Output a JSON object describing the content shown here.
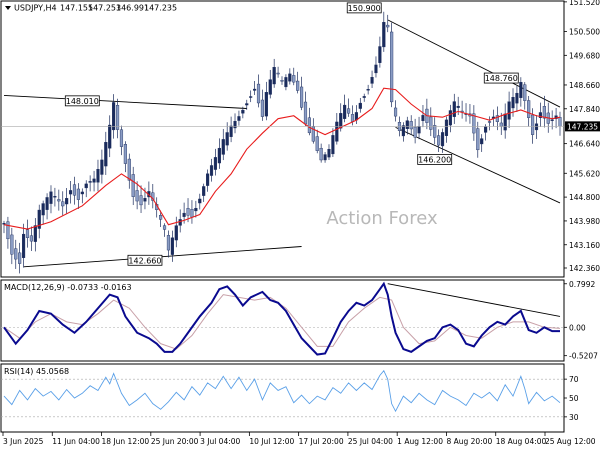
{
  "chart_data": [
    {
      "panel": "price",
      "type": "candlestick",
      "title": "USDJPY,H4",
      "ohlc_header": [
        "147.155",
        "147.253",
        "146.991",
        "147.235"
      ],
      "watermark": "Action Forex",
      "ylim": [
        142.05,
        151.55
      ],
      "y_ticks": [
        "151.520",
        "150.500",
        "149.680",
        "148.660",
        "147.840",
        "147.235",
        "146.640",
        "145.620",
        "144.800",
        "143.980",
        "143.160",
        "142.360"
      ],
      "current_price": "147.235",
      "x_ticks": [
        "3 Jun 2025",
        "11 Jun 04:00",
        "18 Jun 12:00",
        "25 Jun 20:00",
        "3 Jul 04:00",
        "10 Jul 12:00",
        "17 Jul 20:00",
        "25 Jul 04:00",
        "1 Aug 12:00",
        "8 Aug 20:00",
        "18 Aug 04:00",
        "25 Aug 12:00"
      ],
      "close_path": [
        [
          0,
          143.9
        ],
        [
          2,
          142.9
        ],
        [
          4,
          142.6
        ],
        [
          5,
          143.6
        ],
        [
          7,
          143.3
        ],
        [
          9,
          144.3
        ],
        [
          12,
          144.9
        ],
        [
          15,
          144.5
        ],
        [
          17,
          145.1
        ],
        [
          19,
          144.8
        ],
        [
          21,
          145.3
        ],
        [
          23,
          145.4
        ],
        [
          25,
          146.0
        ],
        [
          27,
          147.2
        ],
        [
          28,
          148.0
        ],
        [
          29,
          147.1
        ],
        [
          31,
          146.0
        ],
        [
          33,
          144.9
        ],
        [
          35,
          144.6
        ],
        [
          37,
          145.0
        ],
        [
          39,
          144.3
        ],
        [
          41,
          143.6
        ],
        [
          42,
          142.9
        ],
        [
          44,
          143.8
        ],
        [
          46,
          144.3
        ],
        [
          48,
          144.2
        ],
        [
          50,
          144.8
        ],
        [
          52,
          145.6
        ],
        [
          54,
          146.1
        ],
        [
          56,
          146.7
        ],
        [
          58,
          147.2
        ],
        [
          60,
          147.6
        ],
        [
          62,
          148.1
        ],
        [
          64,
          148.6
        ],
        [
          66,
          147.6
        ],
        [
          67,
          148.4
        ],
        [
          69,
          149.2
        ],
        [
          71,
          148.7
        ],
        [
          73,
          149.0
        ],
        [
          75,
          148.5
        ],
        [
          77,
          147.4
        ],
        [
          79,
          146.8
        ],
        [
          81,
          146.1
        ],
        [
          83,
          146.4
        ],
        [
          85,
          147.3
        ],
        [
          87,
          147.9
        ],
        [
          89,
          147.4
        ],
        [
          91,
          148.1
        ],
        [
          93,
          148.6
        ],
        [
          95,
          149.4
        ],
        [
          96,
          150.0
        ],
        [
          97,
          150.8
        ],
        [
          98,
          150.6
        ],
        [
          99,
          148.0
        ],
        [
          101,
          147.0
        ],
        [
          103,
          147.4
        ],
        [
          105,
          146.9
        ],
        [
          107,
          147.7
        ],
        [
          109,
          147.2
        ],
        [
          111,
          146.6
        ],
        [
          113,
          147.4
        ],
        [
          115,
          148.0
        ],
        [
          117,
          147.7
        ],
        [
          119,
          147.6
        ],
        [
          121,
          146.5
        ],
        [
          123,
          147.3
        ],
        [
          125,
          147.6
        ],
        [
          127,
          147.2
        ],
        [
          129,
          148.0
        ],
        [
          131,
          148.3
        ],
        [
          132,
          148.7
        ],
        [
          133,
          148.1
        ],
        [
          135,
          147.0
        ],
        [
          137,
          147.8
        ],
        [
          139,
          147.4
        ],
        [
          141,
          147.6
        ],
        [
          142,
          147.2
        ]
      ],
      "moving_average_path": [
        [
          0,
          143.85
        ],
        [
          6,
          143.7
        ],
        [
          12,
          143.95
        ],
        [
          20,
          144.5
        ],
        [
          26,
          145.2
        ],
        [
          30,
          145.6
        ],
        [
          34,
          145.25
        ],
        [
          38,
          144.75
        ],
        [
          42,
          143.85
        ],
        [
          46,
          144.0
        ],
        [
          50,
          144.2
        ],
        [
          54,
          145.0
        ],
        [
          58,
          145.6
        ],
        [
          62,
          146.45
        ],
        [
          66,
          147.0
        ],
        [
          70,
          147.5
        ],
        [
          74,
          147.6
        ],
        [
          78,
          147.2
        ],
        [
          82,
          146.95
        ],
        [
          86,
          147.2
        ],
        [
          90,
          147.45
        ],
        [
          94,
          147.85
        ],
        [
          97,
          148.55
        ],
        [
          100,
          148.5
        ],
        [
          104,
          148.0
        ],
        [
          108,
          147.6
        ],
        [
          112,
          147.55
        ],
        [
          116,
          147.75
        ],
        [
          120,
          147.6
        ],
        [
          124,
          147.45
        ],
        [
          128,
          147.65
        ],
        [
          132,
          147.8
        ],
        [
          136,
          147.6
        ],
        [
          140,
          147.5
        ],
        [
          142,
          147.55
        ]
      ],
      "annotations": [
        {
          "label": "150.900",
          "value": 150.9
        },
        {
          "label": "148.010",
          "value": 148.01
        },
        {
          "label": "148.760",
          "value": 148.76
        },
        {
          "label": "146.200",
          "value": 146.2
        },
        {
          "label": "142.660",
          "value": 142.66
        }
      ],
      "trendlines": [
        {
          "from": [
            0,
            148.3
          ],
          "to": [
            62,
            147.85
          ]
        },
        {
          "from": [
            5,
            142.4
          ],
          "to": [
            76,
            143.1
          ]
        },
        {
          "from": [
            98,
            150.9
          ],
          "to": [
            142,
            147.9
          ]
        },
        {
          "from": [
            100,
            147.2
          ],
          "to": [
            142,
            144.6
          ]
        }
      ]
    },
    {
      "panel": "macd",
      "type": "line",
      "title": "MACD(12,26,9) -0.0733 -0.0163",
      "ylim": [
        -0.6,
        0.85
      ],
      "y_ticks": [
        "0.7992",
        "0.00",
        "-0.5207"
      ],
      "macd_path": [
        [
          0,
          0.0
        ],
        [
          3,
          -0.3
        ],
        [
          6,
          -0.05
        ],
        [
          9,
          0.3
        ],
        [
          12,
          0.25
        ],
        [
          15,
          0.05
        ],
        [
          18,
          -0.1
        ],
        [
          21,
          0.1
        ],
        [
          24,
          0.35
        ],
        [
          27,
          0.6
        ],
        [
          29,
          0.55
        ],
        [
          31,
          0.2
        ],
        [
          34,
          -0.1
        ],
        [
          37,
          -0.2
        ],
        [
          39,
          -0.3
        ],
        [
          41,
          -0.45
        ],
        [
          43,
          -0.45
        ],
        [
          45,
          -0.3
        ],
        [
          47,
          -0.1
        ],
        [
          50,
          0.2
        ],
        [
          53,
          0.45
        ],
        [
          55,
          0.7
        ],
        [
          57,
          0.75
        ],
        [
          59,
          0.6
        ],
        [
          61,
          0.4
        ],
        [
          63,
          0.55
        ],
        [
          66,
          0.65
        ],
        [
          68,
          0.5
        ],
        [
          70,
          0.45
        ],
        [
          72,
          0.3
        ],
        [
          74,
          0.05
        ],
        [
          76,
          -0.2
        ],
        [
          78,
          -0.35
        ],
        [
          80,
          -0.5
        ],
        [
          82,
          -0.48
        ],
        [
          84,
          -0.2
        ],
        [
          86,
          0.1
        ],
        [
          88,
          0.3
        ],
        [
          90,
          0.45
        ],
        [
          92,
          0.4
        ],
        [
          94,
          0.5
        ],
        [
          96,
          0.7
        ],
        [
          97,
          0.8
        ],
        [
          98,
          0.6
        ],
        [
          99,
          0.2
        ],
        [
          100,
          -0.1
        ],
        [
          102,
          -0.4
        ],
        [
          104,
          -0.45
        ],
        [
          106,
          -0.35
        ],
        [
          108,
          -0.25
        ],
        [
          110,
          -0.2
        ],
        [
          112,
          0.0
        ],
        [
          114,
          0.05
        ],
        [
          116,
          -0.05
        ],
        [
          118,
          -0.3
        ],
        [
          120,
          -0.35
        ],
        [
          122,
          -0.15
        ],
        [
          124,
          0.0
        ],
        [
          126,
          0.1
        ],
        [
          128,
          0.05
        ],
        [
          130,
          0.2
        ],
        [
          132,
          0.3
        ],
        [
          134,
          -0.05
        ],
        [
          136,
          -0.1
        ],
        [
          138,
          0.0
        ],
        [
          140,
          -0.07
        ],
        [
          142,
          -0.07
        ]
      ],
      "signal_path": [
        [
          0,
          0.0
        ],
        [
          4,
          -0.2
        ],
        [
          8,
          0.1
        ],
        [
          12,
          0.25
        ],
        [
          16,
          0.1
        ],
        [
          20,
          0.05
        ],
        [
          24,
          0.25
        ],
        [
          28,
          0.5
        ],
        [
          32,
          0.35
        ],
        [
          36,
          0.0
        ],
        [
          40,
          -0.3
        ],
        [
          44,
          -0.4
        ],
        [
          48,
          -0.15
        ],
        [
          52,
          0.25
        ],
        [
          56,
          0.6
        ],
        [
          60,
          0.55
        ],
        [
          64,
          0.5
        ],
        [
          68,
          0.55
        ],
        [
          72,
          0.35
        ],
        [
          76,
          0.0
        ],
        [
          80,
          -0.35
        ],
        [
          84,
          -0.35
        ],
        [
          88,
          0.1
        ],
        [
          92,
          0.35
        ],
        [
          96,
          0.55
        ],
        [
          99,
          0.5
        ],
        [
          102,
          0.0
        ],
        [
          106,
          -0.3
        ],
        [
          110,
          -0.25
        ],
        [
          114,
          0.0
        ],
        [
          118,
          -0.15
        ],
        [
          122,
          -0.2
        ],
        [
          126,
          0.0
        ],
        [
          130,
          0.1
        ],
        [
          134,
          0.1
        ],
        [
          138,
          0.0
        ],
        [
          142,
          -0.02
        ]
      ],
      "trendline": {
        "from": [
          98,
          0.8
        ],
        "to": [
          142,
          0.2
        ]
      }
    },
    {
      "panel": "rsi",
      "type": "line",
      "title": "RSI(14) 45.0568",
      "ylim": [
        15,
        85
      ],
      "y_ticks": [
        "70",
        "50",
        "30"
      ],
      "levels": [
        70,
        30
      ],
      "rsi_path": [
        [
          0,
          52
        ],
        [
          2,
          43
        ],
        [
          4,
          58
        ],
        [
          6,
          48
        ],
        [
          8,
          60
        ],
        [
          10,
          52
        ],
        [
          12,
          57
        ],
        [
          14,
          48
        ],
        [
          16,
          59
        ],
        [
          18,
          50
        ],
        [
          20,
          55
        ],
        [
          22,
          63
        ],
        [
          24,
          58
        ],
        [
          26,
          72
        ],
        [
          27,
          65
        ],
        [
          28,
          76
        ],
        [
          30,
          55
        ],
        [
          32,
          42
        ],
        [
          34,
          48
        ],
        [
          36,
          55
        ],
        [
          38,
          44
        ],
        [
          40,
          38
        ],
        [
          42,
          46
        ],
        [
          44,
          56
        ],
        [
          46,
          48
        ],
        [
          48,
          62
        ],
        [
          50,
          53
        ],
        [
          52,
          66
        ],
        [
          54,
          60
        ],
        [
          56,
          73
        ],
        [
          58,
          60
        ],
        [
          60,
          72
        ],
        [
          62,
          58
        ],
        [
          64,
          70
        ],
        [
          66,
          48
        ],
        [
          68,
          66
        ],
        [
          70,
          58
        ],
        [
          72,
          62
        ],
        [
          74,
          45
        ],
        [
          76,
          53
        ],
        [
          78,
          44
        ],
        [
          80,
          52
        ],
        [
          82,
          48
        ],
        [
          84,
          61
        ],
        [
          86,
          55
        ],
        [
          88,
          66
        ],
        [
          90,
          58
        ],
        [
          92,
          66
        ],
        [
          94,
          59
        ],
        [
          96,
          74
        ],
        [
          97,
          79
        ],
        [
          98,
          70
        ],
        [
          99,
          44
        ],
        [
          100,
          36
        ],
        [
          102,
          52
        ],
        [
          104,
          45
        ],
        [
          106,
          55
        ],
        [
          108,
          48
        ],
        [
          110,
          43
        ],
        [
          112,
          58
        ],
        [
          114,
          52
        ],
        [
          116,
          48
        ],
        [
          118,
          42
        ],
        [
          120,
          55
        ],
        [
          122,
          50
        ],
        [
          124,
          56
        ],
        [
          126,
          47
        ],
        [
          128,
          64
        ],
        [
          130,
          52
        ],
        [
          132,
          73
        ],
        [
          133,
          60
        ],
        [
          134,
          44
        ],
        [
          136,
          56
        ],
        [
          138,
          47
        ],
        [
          140,
          52
        ],
        [
          142,
          45
        ]
      ]
    }
  ],
  "colors": {
    "candle_up": "#1a2b5c",
    "candle_down": "#8a9cc4",
    "moving_average": "#e81c1c",
    "macd_line": "#0a0a8f",
    "signal_line": "#c8a0a8",
    "rsi_line": "#5aa0e8",
    "trendline": "#000000",
    "current_price_label": "#000000"
  }
}
